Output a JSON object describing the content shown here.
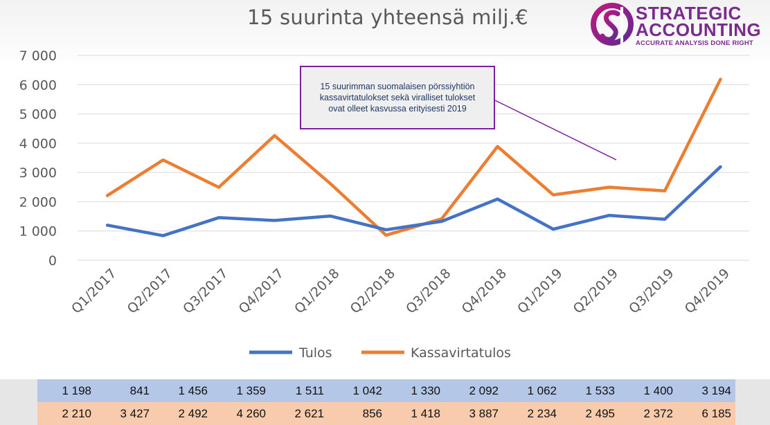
{
  "title": "15 suurinta yhteensä milj.€",
  "logo": {
    "line1": "STRATEGIC",
    "line2": "ACCOUNTING",
    "tagline": "ACCURATE ANALYSIS DONE RIGHT",
    "color": "#7b2a8e"
  },
  "callout": {
    "text": "15 suurimman suomalaisen pörssiyhtiön kassavirtatulokset sekä viralliset tulokset ovat olleet kasvussa erityisesti 2019",
    "border_color": "#7b1fa2"
  },
  "chart_data": {
    "type": "line",
    "title": "15 suurinta yhteensä milj.€",
    "categories": [
      "Q1/2017",
      "Q2/2017",
      "Q3/2017",
      "Q4/2017",
      "Q1/2018",
      "Q2/2018",
      "Q3/2018",
      "Q4/2018",
      "Q1/2019",
      "Q2/2019",
      "Q3/2019",
      "Q4/2019"
    ],
    "y_ticks": [
      "7 000",
      "6 000",
      "5 000",
      "4 000",
      "3 000",
      "2 000",
      "1 000",
      "0"
    ],
    "ylim": [
      0,
      7000
    ],
    "grid": true,
    "legend": "bottom",
    "series": [
      {
        "name": "Tulos",
        "color": "#4472c4",
        "values": [
          1198,
          841,
          1456,
          1359,
          1511,
          1042,
          1330,
          2092,
          1062,
          1533,
          1400,
          3194
        ]
      },
      {
        "name": "Kassavirtatulos",
        "color": "#ed7d31",
        "values": [
          2210,
          3427,
          2492,
          4260,
          2621,
          856,
          1418,
          3887,
          2234,
          2495,
          2372,
          6185
        ]
      }
    ]
  },
  "table": {
    "rows": [
      {
        "color": "#b4c7e7",
        "cells": [
          "1 198",
          "841",
          "1 456",
          "1 359",
          "1 511",
          "1 042",
          "1 330",
          "2 092",
          "1 062",
          "1 533",
          "1 400",
          "3 194"
        ]
      },
      {
        "color": "#f8cbad",
        "cells": [
          "2 210",
          "3 427",
          "2 492",
          "4 260",
          "2 621",
          "856",
          "1 418",
          "3 887",
          "2 234",
          "2 495",
          "2 372",
          "6 185"
        ]
      }
    ]
  }
}
